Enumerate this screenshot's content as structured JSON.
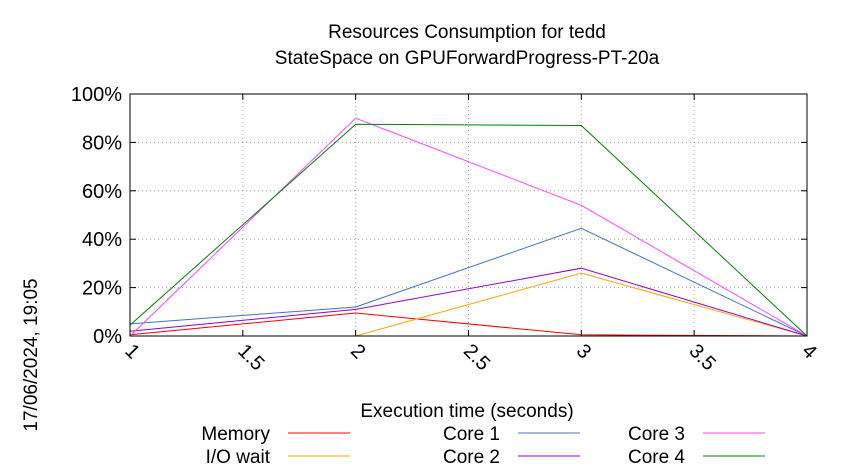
{
  "chart_data": {
    "type": "line",
    "title": "Resources Consumption for tedd",
    "subtitle": "StateSpace on GPUForwardProgress-PT-20a",
    "xlabel": "Execution time (seconds)",
    "ylabel": "",
    "timestamp": "17/06/2024, 19:05",
    "xlim": [
      1,
      4
    ],
    "ylim": [
      0,
      100
    ],
    "x_ticks": [
      "1",
      "1.5",
      "2",
      "2.5",
      "3",
      "3.5",
      "4"
    ],
    "y_ticks": [
      "0%",
      "20%",
      "40%",
      "60%",
      "80%",
      "100%"
    ],
    "grid": true,
    "legend_position": "bottom",
    "series": [
      {
        "name": "Memory",
        "color": "#ff0000",
        "x": [
          1,
          2,
          3,
          4
        ],
        "y": [
          0.5,
          9.5,
          0.5,
          0
        ]
      },
      {
        "name": "I/O wait",
        "color": "#ffa500",
        "x": [
          2,
          3,
          4
        ],
        "y": [
          0,
          26,
          0
        ]
      },
      {
        "name": "Core 1",
        "color": "#4472c4",
        "x": [
          1,
          2,
          3,
          4
        ],
        "y": [
          5,
          12,
          44.5,
          0
        ]
      },
      {
        "name": "Core 2",
        "color": "#9400d3",
        "x": [
          1,
          2,
          3,
          4
        ],
        "y": [
          2,
          11,
          28,
          0
        ]
      },
      {
        "name": "Core 3",
        "color": "#ff44ff",
        "x": [
          1,
          2,
          3,
          4
        ],
        "y": [
          0,
          90,
          54,
          0
        ]
      },
      {
        "name": "Core 4",
        "color": "#008000",
        "x": [
          1,
          2,
          3,
          4
        ],
        "y": [
          4.5,
          87.5,
          87,
          0
        ]
      }
    ]
  }
}
